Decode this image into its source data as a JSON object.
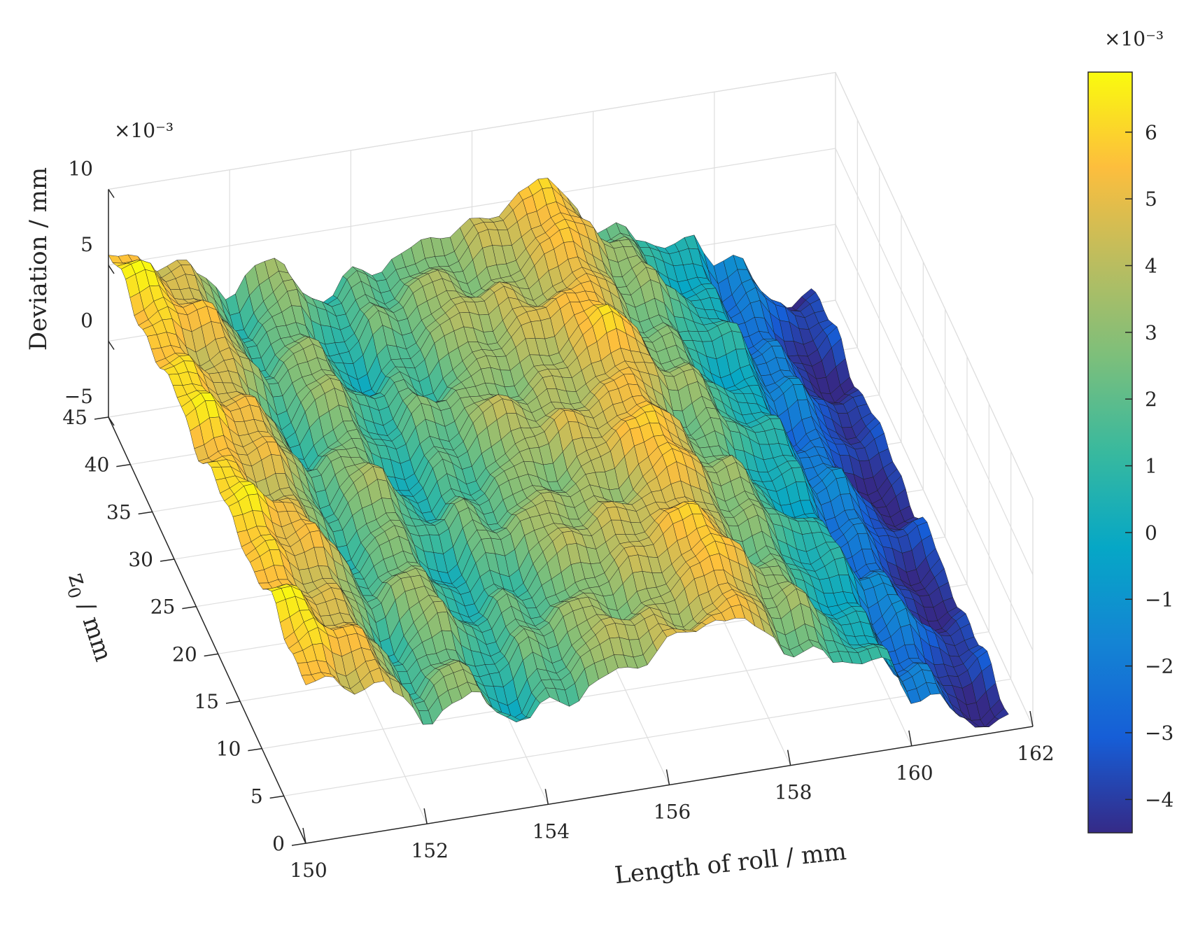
{
  "chart_data": {
    "type": "surface",
    "xlabel": "Length of roll / mm",
    "ylabel": "z",
    "ylabel_sub": "0",
    "ylabel_unit": " / mm",
    "zlabel": "Deviation / mm",
    "z_exponent": "×10⁻³",
    "colorbar_exponent": "×10⁻³",
    "x_ticks": [
      "150",
      "152",
      "154",
      "156",
      "158",
      "160",
      "162"
    ],
    "y_ticks": [
      "0",
      "5",
      "10",
      "15",
      "20",
      "25",
      "30",
      "35",
      "40",
      "45"
    ],
    "z_ticks": [
      "−5",
      "0",
      "5",
      "10"
    ],
    "colorbar_ticks": [
      "−4",
      "−3",
      "−2",
      "−1",
      "0",
      "1",
      "2",
      "3",
      "4",
      "5",
      "6"
    ],
    "xlim": [
      150,
      162
    ],
    "ylim": [
      0,
      45
    ],
    "zlim": [
      -5,
      10
    ],
    "clim": [
      -4.5,
      6.9
    ],
    "grid": true,
    "colormap": "parula",
    "profile_along_x": {
      "x": [
        150.0,
        150.4,
        150.8,
        151.2,
        151.6,
        152.0,
        152.4,
        152.8,
        153.2,
        153.6,
        154.0,
        154.4,
        154.8,
        155.2,
        155.6,
        156.0,
        156.4,
        156.8,
        157.2,
        157.6,
        158.0,
        158.4,
        158.8,
        159.2,
        159.6,
        160.0,
        160.4,
        160.8,
        161.2,
        161.6
      ],
      "deviation": [
        5.8,
        6.2,
        4.7,
        5.0,
        3.2,
        1.1,
        2.7,
        3.2,
        1.2,
        0.6,
        2.4,
        1.6,
        3.0,
        3.6,
        3.1,
        4.2,
        3.9,
        5.0,
        5.6,
        4.6,
        2.6,
        3.1,
        1.2,
        0.3,
        0.5,
        -2.3,
        -1.6,
        -3.6,
        -4.5,
        -3.6
      ]
    }
  }
}
